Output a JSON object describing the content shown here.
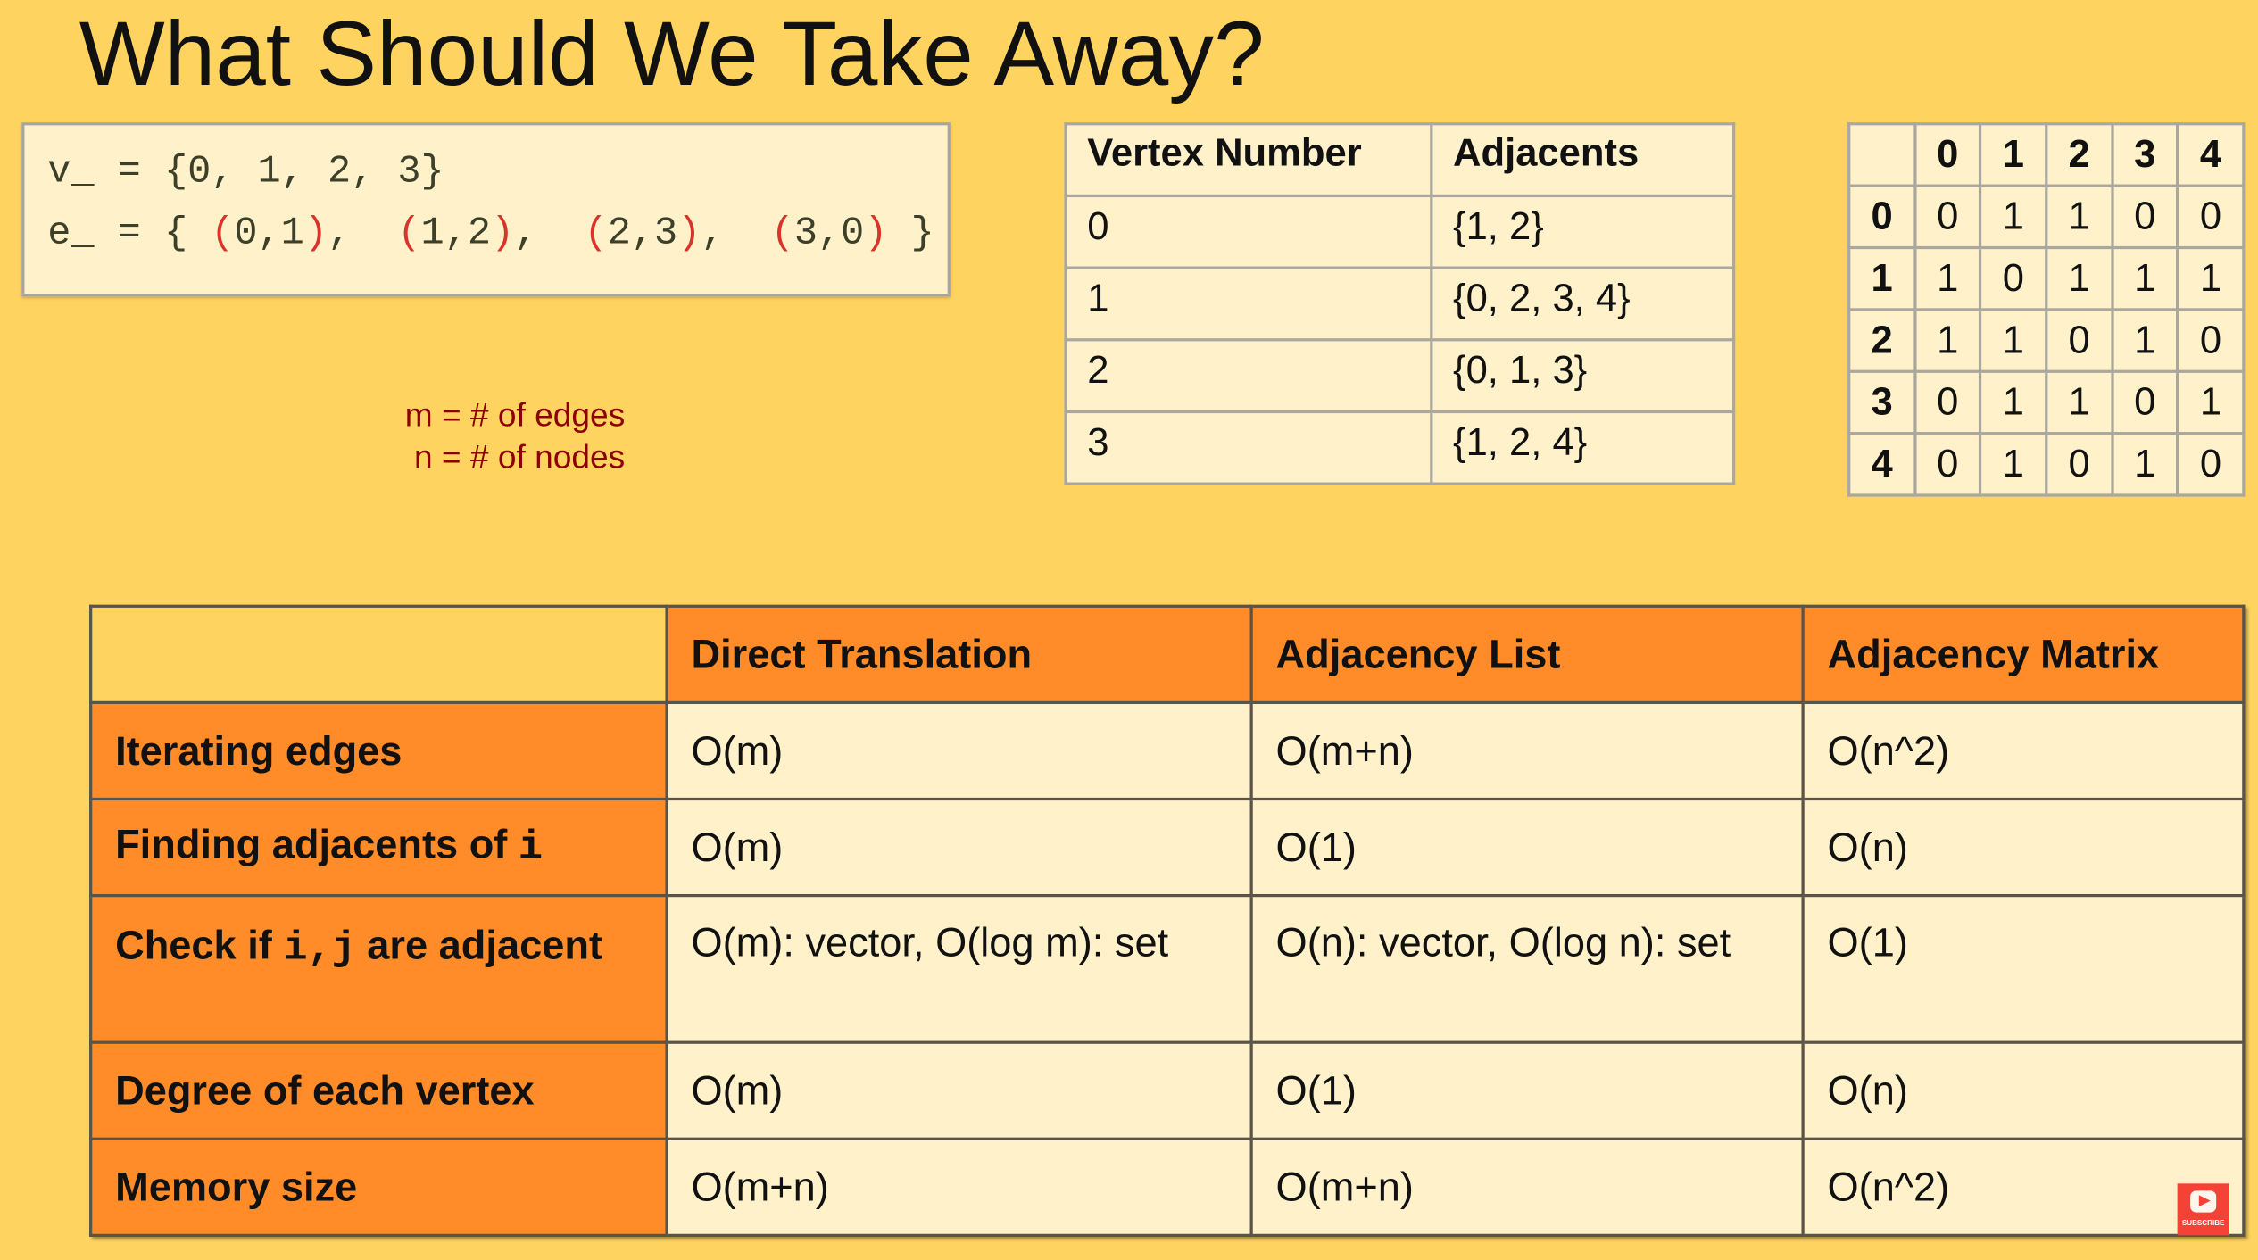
{
  "title": "What Should We Take Away?",
  "code": {
    "v_line": {
      "prefix": "v_ = {0, 1, 2, 3}"
    },
    "e_line": {
      "prefix": "e_ = { ",
      "pairs": [
        "(0,1)",
        "(1,2)",
        "(2,3)",
        "(3,0)"
      ],
      "sep": ",  ",
      "suffix": " }"
    }
  },
  "definitions": [
    "m = # of edges",
    "n = # of nodes"
  ],
  "vertex_table": {
    "headers": [
      "Vertex Number",
      "Adjacents"
    ],
    "rows": [
      [
        "0",
        "{1, 2}"
      ],
      [
        "1",
        "{0, 2, 3, 4}"
      ],
      [
        "2",
        "{0, 1, 3}"
      ],
      [
        "3",
        "{1, 2, 4}"
      ]
    ]
  },
  "matrix": {
    "col_headers": [
      "0",
      "1",
      "2",
      "3",
      "4"
    ],
    "rows": [
      {
        "label": "0",
        "values": [
          "0",
          "1",
          "1",
          "0",
          "0"
        ]
      },
      {
        "label": "1",
        "values": [
          "1",
          "0",
          "1",
          "1",
          "1"
        ]
      },
      {
        "label": "2",
        "values": [
          "1",
          "1",
          "0",
          "1",
          "0"
        ]
      },
      {
        "label": "3",
        "values": [
          "0",
          "1",
          "1",
          "0",
          "1"
        ]
      },
      {
        "label": "4",
        "values": [
          "0",
          "1",
          "0",
          "1",
          "0"
        ]
      }
    ]
  },
  "comparison": {
    "headers": [
      "",
      "Direct Translation",
      "Adjacency List",
      "Adjacency Matrix"
    ],
    "rows": [
      {
        "label": "Iterating edges",
        "cells": [
          "O(m)",
          "O(m+n)",
          "O(n^2)"
        ]
      },
      {
        "label": "Finding adjacents of ",
        "code": "i",
        "cells": [
          "O(m)",
          "O(1)",
          "O(n)"
        ]
      },
      {
        "label": "Check if ",
        "code": "i,j",
        "label_after": " are adjacent",
        "cells": [
          "O(m): vector, O(log m): set",
          "O(n): vector, O(log n): set",
          "O(1)"
        ]
      },
      {
        "label": "Degree of each vertex",
        "cells": [
          "O(m)",
          "O(1)",
          "O(n)"
        ]
      },
      {
        "label": "Memory size",
        "cells": [
          "O(m+n)",
          "O(m+n)",
          "O(n^2)"
        ]
      }
    ]
  },
  "subscribe": {
    "label": "SUBSCRIBE",
    "icon": "youtube-play-icon"
  },
  "colors": {
    "background": "#FFD35F",
    "header_orange": "#FF8C28",
    "cell_cream": "#FFF1C9",
    "definition_red": "#8B0000",
    "paren_red": "#D9342B"
  }
}
